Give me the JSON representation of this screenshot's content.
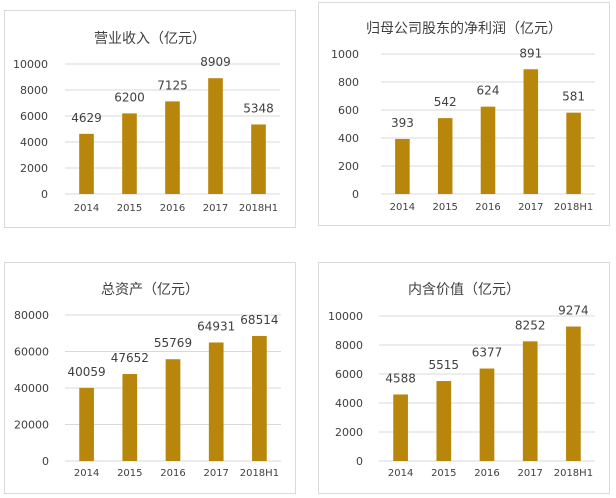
{
  "chart_data": [
    {
      "type": "bar",
      "title": "营业收入（亿元）",
      "categories": [
        "2014",
        "2015",
        "2016",
        "2017",
        "2018H1"
      ],
      "values": [
        4629,
        6200,
        7125,
        8909,
        5348
      ],
      "labels": [
        "4629",
        "6200",
        "7125",
        "8909",
        "5348"
      ],
      "ylim": [
        0,
        10000
      ],
      "yticks": [
        "0",
        "2000",
        "4000",
        "6000",
        "8000",
        "10000"
      ],
      "grid": true,
      "color": "#b8860b"
    },
    {
      "type": "bar",
      "title": "归母公司股东的净利润（亿元）",
      "categories": [
        "2014",
        "2015",
        "2016",
        "2017",
        "2018H1"
      ],
      "values": [
        393,
        542,
        624,
        891,
        581
      ],
      "labels": [
        "393",
        "542",
        "624",
        "891",
        "581"
      ],
      "ylim": [
        0,
        1000
      ],
      "yticks": [
        "0",
        "200",
        "400",
        "600",
        "800",
        "1000"
      ],
      "grid": true,
      "color": "#b8860b"
    },
    {
      "type": "bar",
      "title": "总资产（亿元）",
      "categories": [
        "2014",
        "2015",
        "2016",
        "2017",
        "2018H1"
      ],
      "values": [
        40059,
        47652,
        55769,
        64931,
        68514
      ],
      "labels": [
        "40059",
        "47652",
        "55769",
        "64931",
        "68514"
      ],
      "ylim": [
        0,
        80000
      ],
      "yticks": [
        "0",
        "20000",
        "40000",
        "60000",
        "80000"
      ],
      "grid": true,
      "color": "#b8860b"
    },
    {
      "type": "bar",
      "title": "内含价值（亿元）",
      "categories": [
        "2014",
        "2015",
        "2016",
        "2017",
        "2018H1"
      ],
      "values": [
        4588,
        5515,
        6377,
        8252,
        9274
      ],
      "labels": [
        "4588",
        "5515",
        "6377",
        "8252",
        "9274"
      ],
      "ylim": [
        0,
        10000
      ],
      "yticks": [
        "0",
        "2000",
        "4000",
        "6000",
        "8000",
        "10000"
      ],
      "grid": true,
      "color": "#b8860b"
    }
  ]
}
